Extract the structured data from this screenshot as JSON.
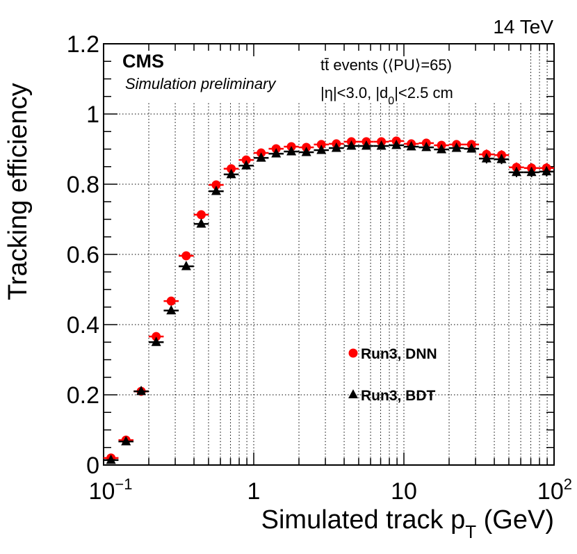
{
  "chart_data": {
    "type": "scatter",
    "title": "",
    "energy_label": "14 TeV",
    "experiment": "CMS",
    "subtitle": "Simulation preliminary",
    "info_lines": [
      "tt̄ events (⟨PU⟩=65)",
      "|η|<3.0, |d₀|<2.5 cm"
    ],
    "info_line1_parts": {
      "main": "tt̄ events (⟨PU⟩=65)"
    },
    "info_line2_parts": {
      "pre": "|η|<3.0, |d",
      "sub": "0",
      "post": "|<2.5 cm"
    },
    "xlabel": {
      "main": "Simulated track p",
      "sub": "T",
      "post": " (GeV)"
    },
    "ylabel": "Tracking efficiency",
    "xscale": "log",
    "xlim": [
      0.1,
      100
    ],
    "ylim": [
      0,
      1.2
    ],
    "grid": true,
    "x_tick_labels": [
      {
        "value": 0.1,
        "base": "10",
        "exp": "−1"
      },
      {
        "value": 1,
        "base": "1",
        "exp": ""
      },
      {
        "value": 10,
        "base": "10",
        "exp": ""
      },
      {
        "value": 100,
        "base": "10",
        "exp": "2"
      }
    ],
    "y_tick_labels": [
      {
        "value": 0,
        "label": "0"
      },
      {
        "value": 0.2,
        "label": "0.2"
      },
      {
        "value": 0.4,
        "label": "0.4"
      },
      {
        "value": 0.6,
        "label": "0.6"
      },
      {
        "value": 0.8,
        "label": "0.8"
      },
      {
        "value": 1.0,
        "label": "1"
      },
      {
        "value": 1.2,
        "label": "1.2"
      }
    ],
    "legend_position": "center-right",
    "x": [
      0.112,
      0.141,
      0.178,
      0.224,
      0.282,
      0.355,
      0.447,
      0.562,
      0.708,
      0.891,
      1.12,
      1.41,
      1.78,
      2.24,
      2.82,
      3.55,
      4.47,
      5.62,
      7.08,
      8.91,
      11.2,
      14.1,
      17.8,
      22.4,
      28.2,
      35.5,
      44.7,
      56.2,
      70.8,
      89.1
    ],
    "series": [
      {
        "name": "Run3, DNN",
        "marker": "circle",
        "color": "#ff0000",
        "values": [
          0.02,
          0.071,
          0.21,
          0.366,
          0.467,
          0.596,
          0.713,
          0.798,
          0.844,
          0.869,
          0.889,
          0.901,
          0.907,
          0.905,
          0.913,
          0.915,
          0.921,
          0.921,
          0.921,
          0.923,
          0.915,
          0.917,
          0.911,
          0.913,
          0.913,
          0.885,
          0.883,
          0.848,
          0.846,
          0.846
        ]
      },
      {
        "name": "Run3, BDT",
        "marker": "triangle",
        "color": "#000000",
        "values": [
          0.014,
          0.067,
          0.21,
          0.35,
          0.44,
          0.566,
          0.687,
          0.78,
          0.828,
          0.853,
          0.875,
          0.887,
          0.893,
          0.891,
          0.897,
          0.903,
          0.909,
          0.909,
          0.909,
          0.911,
          0.907,
          0.905,
          0.899,
          0.903,
          0.901,
          0.873,
          0.871,
          0.834,
          0.834,
          0.836
        ]
      }
    ]
  }
}
